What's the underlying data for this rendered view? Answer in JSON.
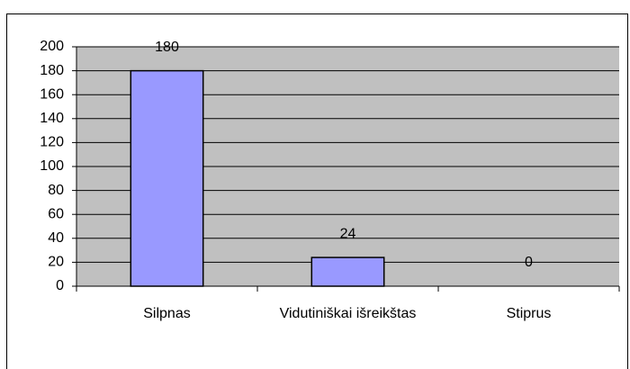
{
  "chart_data": {
    "type": "bar",
    "categories": [
      "Silpnas",
      "Vidutiniškai išreikštas",
      "Stiprus"
    ],
    "values": [
      180,
      24,
      0
    ],
    "color": "#9999ff",
    "ylim": [
      0,
      200
    ],
    "yticks": [
      0,
      20,
      40,
      60,
      80,
      100,
      120,
      140,
      160,
      180,
      200
    ],
    "grid": true
  }
}
